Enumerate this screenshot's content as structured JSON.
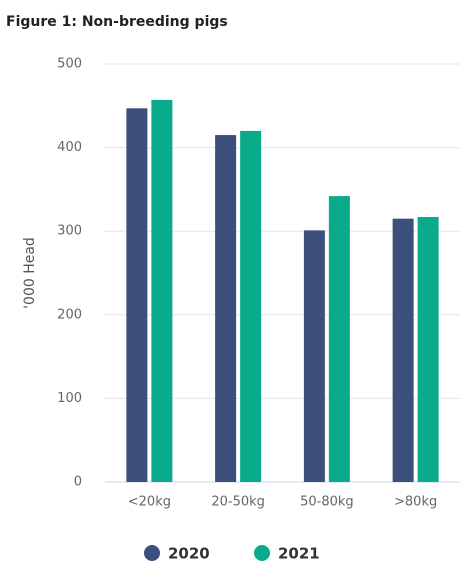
{
  "chart_data": {
    "type": "bar",
    "title": "Figure 1: Non-breeding pigs",
    "y_label": "'000 Head",
    "categories": [
      "<20kg",
      "20-50kg",
      "50-80kg",
      ">80kg"
    ],
    "series": [
      {
        "name": "2020",
        "color": "#3d4f7c",
        "values": [
          447,
          415,
          301,
          315
        ]
      },
      {
        "name": "2021",
        "color": "#0aab8a",
        "values": [
          457,
          420,
          342,
          317
        ]
      }
    ],
    "ylim": [
      0,
      500
    ],
    "yticks": [
      0,
      100,
      200,
      300,
      400,
      500
    ],
    "grid": true
  }
}
